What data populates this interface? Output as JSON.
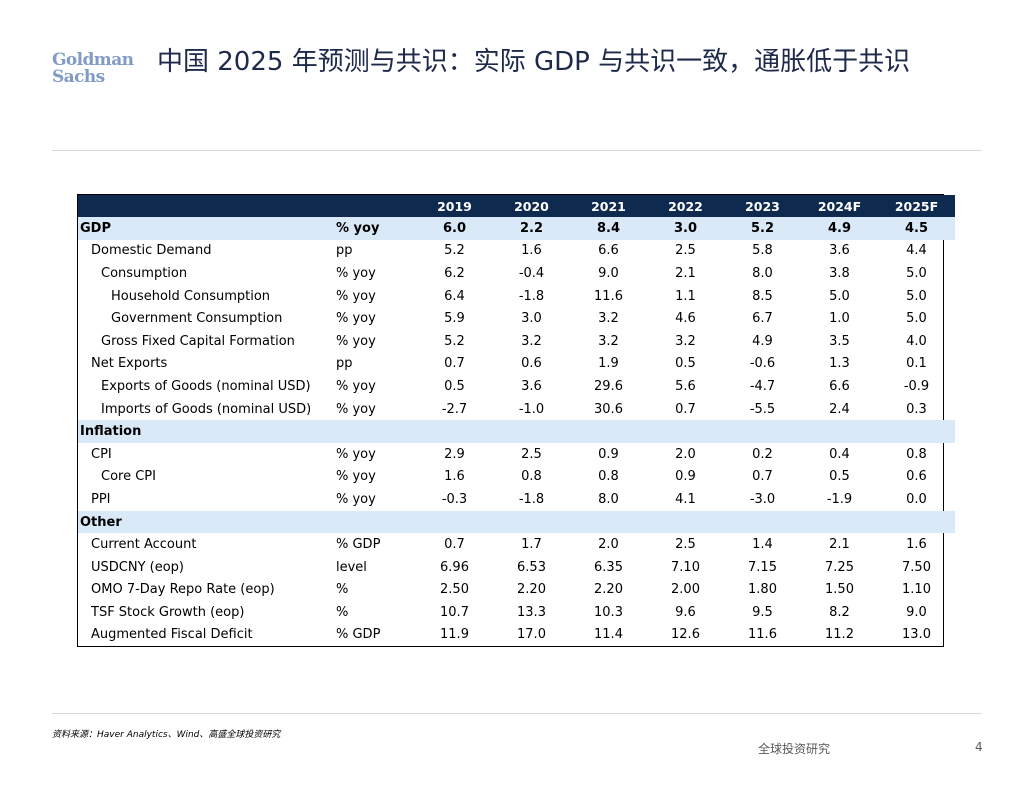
{
  "logo": {
    "line1": "Goldman",
    "line2": "Sachs"
  },
  "title": "中国 2025 年预测与共识：实际 GDP 与共识一致，通胀低于共识",
  "table": {
    "header": {
      "label": "",
      "unit": "",
      "years": [
        "2019",
        "2020",
        "2021",
        "2022",
        "2023",
        "2024F",
        "2025F"
      ]
    },
    "rows": [
      {
        "label": "GDP",
        "unit": "% yoy",
        "values": [
          "6.0",
          "2.2",
          "8.4",
          "3.0",
          "5.2",
          "4.9",
          "4.5"
        ]
      },
      {
        "label": "Domestic Demand",
        "unit": "pp",
        "values": [
          "5.2",
          "1.6",
          "6.6",
          "2.5",
          "5.8",
          "3.6",
          "4.4"
        ]
      },
      {
        "label": "Consumption",
        "unit": "% yoy",
        "values": [
          "6.2",
          "-0.4",
          "9.0",
          "2.1",
          "8.0",
          "3.8",
          "5.0"
        ]
      },
      {
        "label": "Household Consumption",
        "unit": "% yoy",
        "values": [
          "6.4",
          "-1.8",
          "11.6",
          "1.1",
          "8.5",
          "5.0",
          "5.0"
        ]
      },
      {
        "label": "Government Consumption",
        "unit": "% yoy",
        "values": [
          "5.9",
          "3.0",
          "3.2",
          "4.6",
          "6.7",
          "1.0",
          "5.0"
        ]
      },
      {
        "label": "Gross Fixed Capital Formation",
        "unit": "% yoy",
        "values": [
          "5.2",
          "3.2",
          "3.2",
          "3.2",
          "4.9",
          "3.5",
          "4.0"
        ]
      },
      {
        "label": "Net Exports",
        "unit": "pp",
        "values": [
          "0.7",
          "0.6",
          "1.9",
          "0.5",
          "-0.6",
          "1.3",
          "0.1"
        ]
      },
      {
        "label": "Exports of Goods (nominal USD)",
        "unit": "% yoy",
        "values": [
          "0.5",
          "3.6",
          "29.6",
          "5.6",
          "-4.7",
          "6.6",
          "-0.9"
        ]
      },
      {
        "label": "Imports of Goods (nominal USD)",
        "unit": "% yoy",
        "values": [
          "-2.7",
          "-1.0",
          "30.6",
          "0.7",
          "-5.5",
          "2.4",
          "0.3"
        ]
      },
      {
        "label": "Inflation"
      },
      {
        "label": "CPI",
        "unit": "% yoy",
        "values": [
          "2.9",
          "2.5",
          "0.9",
          "2.0",
          "0.2",
          "0.4",
          "0.8"
        ]
      },
      {
        "label": "Core CPI",
        "unit": "% yoy",
        "values": [
          "1.6",
          "0.8",
          "0.8",
          "0.9",
          "0.7",
          "0.5",
          "0.6"
        ]
      },
      {
        "label": "PPI",
        "unit": "% yoy",
        "values": [
          "-0.3",
          "-1.8",
          "8.0",
          "4.1",
          "-3.0",
          "-1.9",
          "0.0"
        ]
      },
      {
        "label": "Other"
      },
      {
        "label": "Current Account",
        "unit": "% GDP",
        "values": [
          "0.7",
          "1.7",
          "2.0",
          "2.5",
          "1.4",
          "2.1",
          "1.6"
        ]
      },
      {
        "label": "USDCNY (eop)",
        "unit": "level",
        "values": [
          "6.96",
          "6.53",
          "6.35",
          "7.10",
          "7.15",
          "7.25",
          "7.50"
        ]
      },
      {
        "label": "OMO 7-Day Repo Rate (eop)",
        "unit": "%",
        "values": [
          "2.50",
          "2.20",
          "2.20",
          "2.00",
          "1.80",
          "1.50",
          "1.10"
        ]
      },
      {
        "label": "TSF Stock Growth (eop)",
        "unit": "%",
        "values": [
          "10.7",
          "13.3",
          "10.3",
          "9.6",
          "9.5",
          "8.2",
          "9.0"
        ]
      },
      {
        "label": "Augmented Fiscal Deficit",
        "unit": "% GDP",
        "values": [
          "11.9",
          "17.0",
          "11.4",
          "12.6",
          "11.6",
          "11.2",
          "13.0"
        ]
      }
    ]
  },
  "source": "资料来源：Haver Analytics、Wind、高盛全球投资研究",
  "footer": {
    "text": "全球投资研究",
    "page": "4"
  }
}
